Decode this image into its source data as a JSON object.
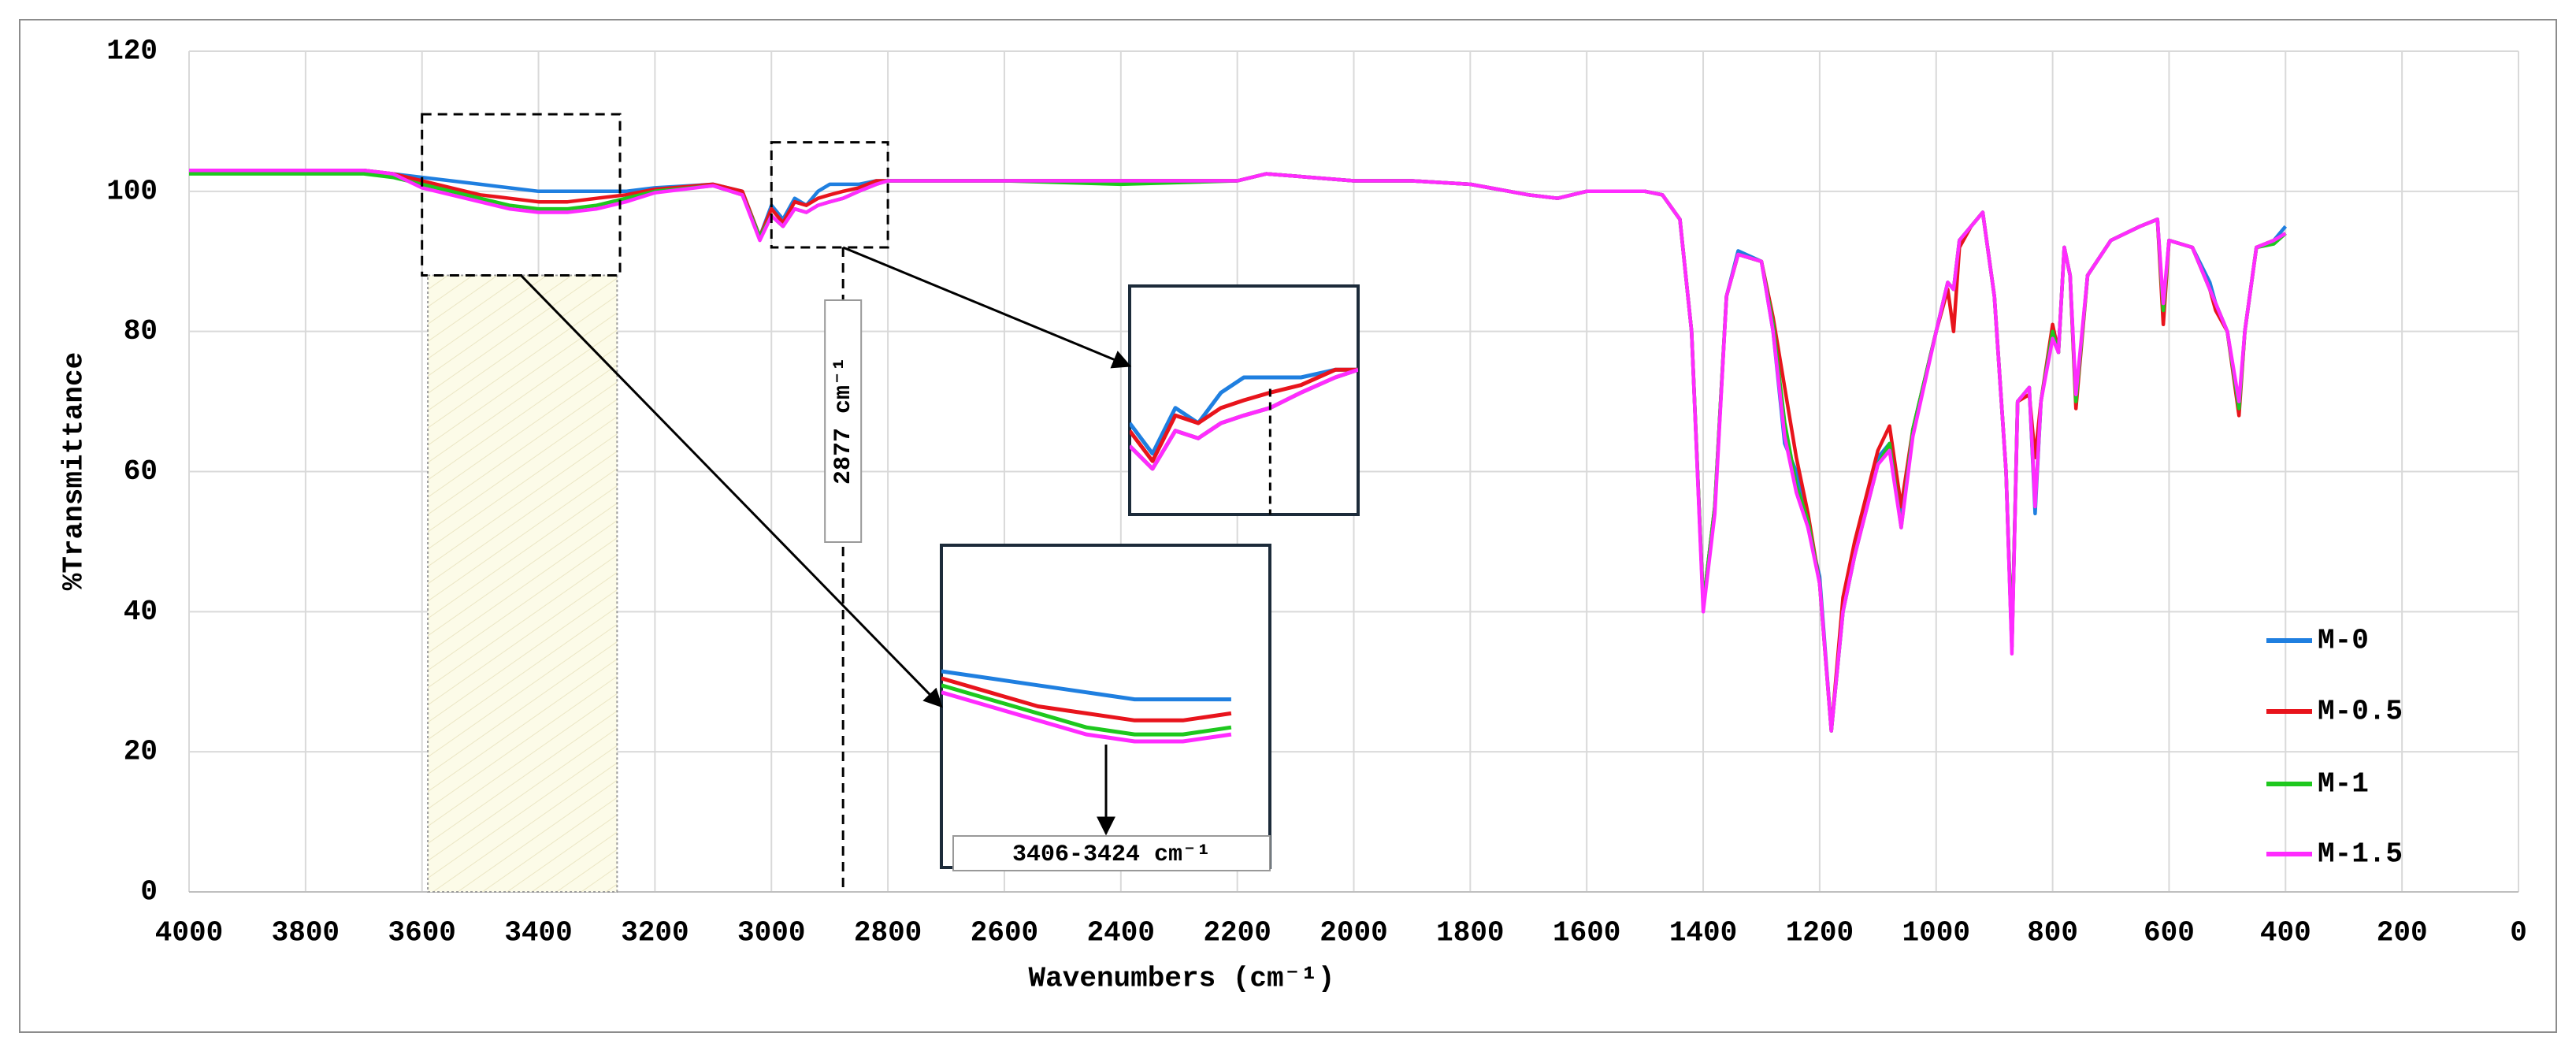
{
  "chart_data": {
    "type": "line",
    "x_label": "Wavenumbers (cm⁻¹)",
    "y_label": "%Transmittance",
    "xlim": [
      4000,
      0
    ],
    "ylim": [
      0,
      120
    ],
    "xticks": [
      4000,
      3800,
      3600,
      3400,
      3200,
      3000,
      2800,
      2600,
      2400,
      2200,
      2000,
      1800,
      1600,
      1400,
      1200,
      1000,
      800,
      600,
      400,
      200,
      0
    ],
    "yticks": [
      0,
      20,
      40,
      60,
      80,
      100,
      120
    ],
    "grid": true,
    "legend": "right",
    "x": [
      4000,
      3900,
      3800,
      3700,
      3650,
      3600,
      3550,
      3500,
      3450,
      3400,
      3350,
      3300,
      3250,
      3200,
      3100,
      3050,
      3020,
      3000,
      2980,
      2960,
      2940,
      2920,
      2900,
      2877,
      2850,
      2820,
      2800,
      2600,
      2400,
      2200,
      2150,
      2000,
      1900,
      1800,
      1700,
      1650,
      1600,
      1500,
      1470,
      1440,
      1420,
      1400,
      1380,
      1360,
      1340,
      1300,
      1280,
      1260,
      1240,
      1220,
      1200,
      1180,
      1160,
      1140,
      1100,
      1080,
      1060,
      1040,
      1000,
      980,
      970,
      960,
      940,
      920,
      900,
      880,
      870,
      860,
      840,
      830,
      820,
      800,
      790,
      780,
      770,
      760,
      740,
      700,
      650,
      620,
      610,
      600,
      560,
      530,
      520,
      500,
      480,
      470,
      450,
      420,
      400
    ],
    "series": [
      {
        "name": "M-0",
        "color": "#1f7fe0",
        "values": [
          103,
          103,
          103,
          103,
          102.5,
          102,
          101.5,
          101,
          100.5,
          100,
          100,
          100,
          100,
          100.5,
          101,
          100,
          93.5,
          98,
          96,
          99,
          98,
          100,
          101,
          101,
          101,
          101.5,
          101.5,
          101.5,
          101.5,
          101.5,
          102.5,
          101.5,
          101.5,
          101,
          99.5,
          99,
          100,
          100,
          99.5,
          96,
          80,
          41,
          55,
          85,
          91.5,
          90,
          80,
          64,
          60,
          52,
          45,
          23,
          40,
          48,
          62,
          64,
          53,
          66,
          80,
          87,
          86,
          93,
          95,
          97,
          85,
          60,
          35,
          70,
          72,
          54,
          70,
          80,
          77,
          92,
          88,
          70,
          88,
          93,
          95,
          96,
          83,
          93,
          92,
          87,
          84,
          80,
          69,
          80,
          92,
          93,
          95
        ]
      },
      {
        "name": "M-0.5",
        "color": "#e8141c",
        "values": [
          103,
          103,
          103,
          103,
          102.5,
          101.5,
          100.5,
          99.5,
          99,
          98.5,
          98.5,
          99,
          99.5,
          100.3,
          101,
          100,
          93.5,
          97.5,
          95.5,
          98.5,
          98,
          99,
          99.5,
          100,
          100.5,
          101.5,
          101.5,
          101.5,
          101.5,
          101.5,
          102.5,
          101.5,
          101.5,
          101,
          99.5,
          99,
          100,
          100,
          99.5,
          96,
          80,
          41,
          55,
          85,
          91,
          90,
          82,
          72,
          62,
          54,
          44,
          23,
          42,
          50,
          63,
          66.5,
          55,
          66,
          80,
          86,
          80,
          92,
          95,
          97,
          85,
          60,
          35,
          70,
          71,
          62,
          70,
          81,
          77,
          92,
          88,
          69,
          88,
          93,
          95,
          96,
          81,
          93,
          92,
          86,
          83,
          80,
          68,
          80,
          92,
          93,
          94
        ]
      },
      {
        "name": "M-1",
        "color": "#1ec81e",
        "values": [
          102.5,
          102.5,
          102.5,
          102.5,
          102,
          101,
          100,
          99,
          98,
          97.5,
          97.5,
          98,
          99,
          100,
          100.8,
          99.5,
          93.5,
          96.5,
          95,
          97.5,
          97,
          98,
          98.5,
          99,
          100,
          101,
          101.5,
          101.5,
          101,
          101.5,
          102.5,
          101.5,
          101.5,
          101,
          99.5,
          99,
          100,
          100,
          99.5,
          96,
          80,
          41,
          55,
          85,
          91,
          90,
          81,
          67,
          58,
          53,
          44,
          23,
          40,
          48,
          61,
          64,
          52,
          66,
          80,
          87,
          86,
          93,
          95,
          97,
          85,
          60,
          35,
          70,
          72,
          55,
          70,
          80,
          77,
          92,
          88,
          70,
          88,
          93,
          95,
          96,
          83,
          93,
          92,
          86,
          84,
          80,
          69,
          80,
          92,
          92.5,
          94
        ]
      },
      {
        "name": "M-1.5",
        "color": "#ff2bff",
        "values": [
          103,
          103,
          103,
          103,
          102.5,
          100.5,
          99.5,
          98.5,
          97.5,
          97,
          97,
          97.5,
          98.5,
          99.8,
          100.8,
          99.5,
          93,
          96.5,
          95,
          97.5,
          97,
          98,
          98.5,
          99,
          100,
          101,
          101.5,
          101.5,
          101.5,
          101.5,
          102.5,
          101.5,
          101.5,
          101,
          99.5,
          99,
          100,
          100,
          99.5,
          96,
          80,
          40,
          54,
          85,
          91,
          90,
          80,
          65,
          57,
          52,
          44,
          23,
          40,
          48,
          61,
          63,
          52,
          65,
          80,
          87,
          86,
          93,
          95,
          97,
          85,
          60,
          34,
          70,
          72,
          55,
          70,
          79,
          77,
          92,
          88,
          71,
          88,
          93,
          95,
          96,
          84,
          93,
          92,
          86,
          84,
          80,
          70,
          80,
          92,
          93,
          94
        ]
      }
    ],
    "highlight": {
      "xlim": [
        3590,
        3265
      ]
    },
    "insets": [
      {
        "xlim": [
          3000,
          2800
        ],
        "ylim": [
          92,
          107
        ]
      },
      {
        "xlim": [
          3600,
          3260
        ],
        "ylim": [
          88,
          111
        ]
      }
    ],
    "annotations": [
      {
        "text": "2877 cm⁻¹",
        "x": 2877
      },
      {
        "text": "3406-3424 cm⁻¹"
      }
    ]
  }
}
